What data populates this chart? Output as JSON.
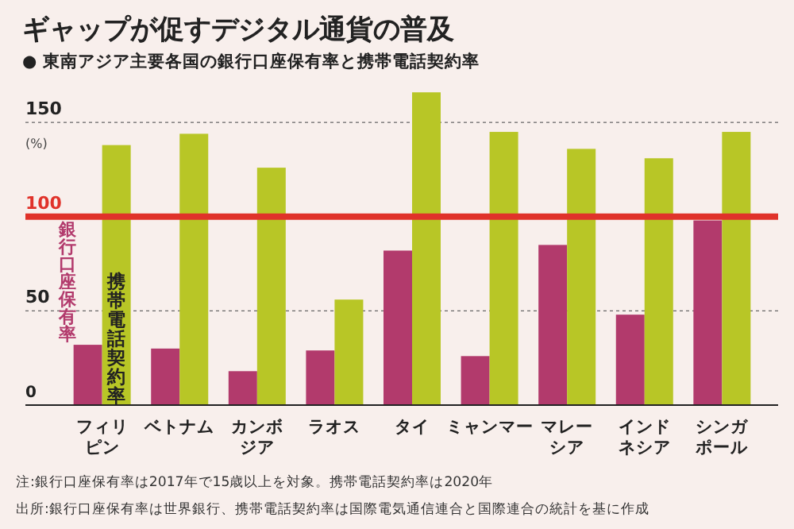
{
  "chart_data": {
    "type": "bar",
    "title": "ギャップが促すデジタル通貨の普及",
    "subtitle": "● 東南アジア主要各国の銀行口座保有率と携帯電話契約率",
    "ylabel": "(%)",
    "categories": [
      "フィリピン",
      "ベトナム",
      "カンボジア",
      "ラオス",
      "タイ",
      "ミャンマー",
      "マレーシア",
      "インドネシア",
      "シンガポール"
    ],
    "series": [
      {
        "name": "銀行口座保有率",
        "color": "#b23a6c",
        "values": [
          32,
          30,
          18,
          29,
          82,
          26,
          85,
          48,
          98
        ]
      },
      {
        "name": "携帯電話契約率",
        "color": "#b8c626",
        "values": [
          138,
          144,
          126,
          56,
          166,
          145,
          136,
          131,
          145
        ]
      }
    ],
    "ylim": [
      0,
      215
    ],
    "yticks": [
      0,
      50,
      100,
      150
    ],
    "grid": "y",
    "legend": false,
    "ref_lines": [
      {
        "axis": "y",
        "value": 100,
        "color": "#e0322a"
      }
    ],
    "annotations": [
      "注:銀行口座保有率は2017年で15歳以上を対象。携帯電話契約率は2020年",
      "出所:銀行口座保有率は世界銀行、携帯電話契約率は国際電気通信連合と国際連合の統計を基に作成"
    ]
  }
}
